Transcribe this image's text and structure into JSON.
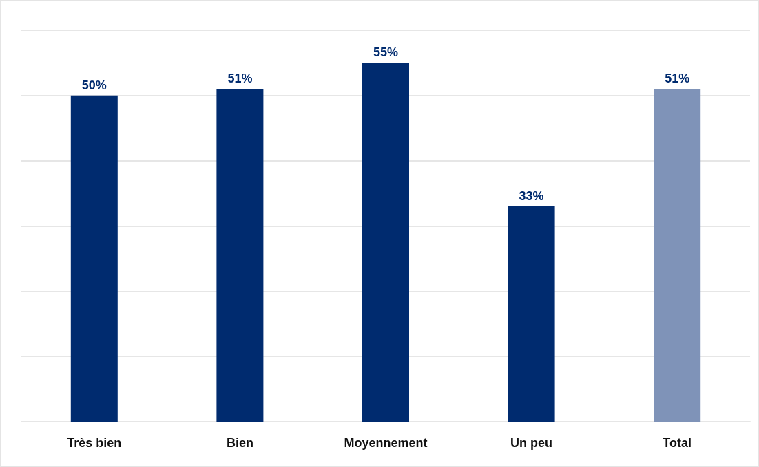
{
  "chart_data": {
    "type": "bar",
    "categories": [
      "Très bien",
      "Bien",
      "Moyennement",
      "Un peu",
      "Total"
    ],
    "values": [
      50,
      51,
      55,
      33,
      51
    ],
    "value_labels": [
      "50%",
      "51%",
      "55%",
      "33%",
      "51%"
    ],
    "colors": [
      "#002b6f",
      "#002b6f",
      "#002b6f",
      "#002b6f",
      "#7f93b8"
    ],
    "ylim": [
      0,
      60
    ],
    "yticks": [
      0,
      10,
      20,
      30,
      40,
      50,
      60
    ],
    "grid": "y",
    "tick_labels": "x"
  }
}
